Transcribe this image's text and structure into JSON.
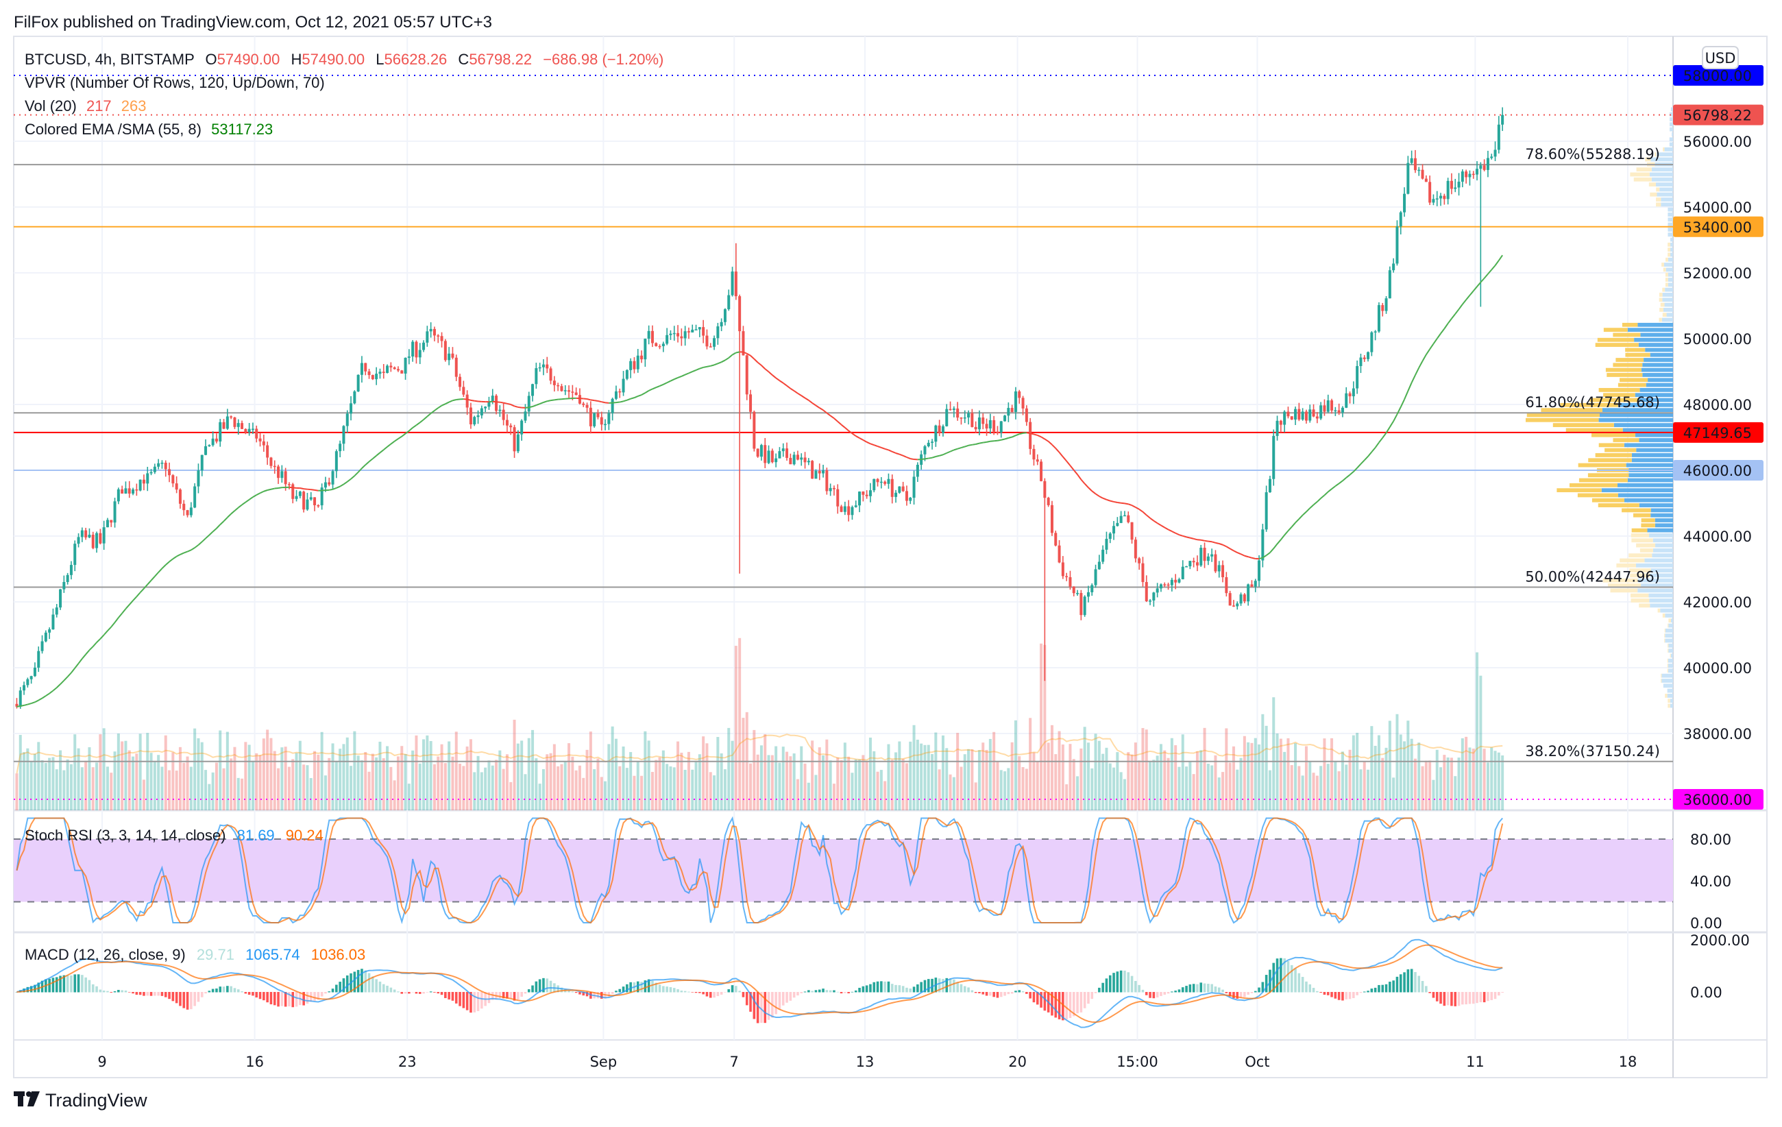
{
  "header": {
    "published": "FilFox published on TradingView.com, Oct 12, 2021 05:57 UTC+3"
  },
  "legend": {
    "symbol": "BTCUSD, 4h, BITSTAMP",
    "o_label": "O",
    "o": "57490.00",
    "h_label": "H",
    "h": "57490.00",
    "l_label": "L",
    "l": "56628.26",
    "c_label": "C",
    "c": "56798.22",
    "change": "−686.98 (−1.20%)",
    "vpvr": "VPVR (Number Of Rows, 120, Up/Down, 70)",
    "vol_label": "Vol (20)",
    "vol1": "217",
    "vol2": "263",
    "ema_label": "Colored EMA /SMA (55, 8)",
    "ema_val": "53117.23"
  },
  "rsi": {
    "label": "Stoch RSI (3, 3, 14, 14, close)",
    "k": "81.69",
    "d": "90.24",
    "ticks": [
      {
        "label": "80.00",
        "value": 80
      },
      {
        "label": "40.00",
        "value": 40
      },
      {
        "label": "0.00",
        "value": 0
      }
    ]
  },
  "macd": {
    "label": "MACD (12, 26, close, 9)",
    "hist": "29.71",
    "macd": "1065.74",
    "signal": "1036.03",
    "ticks": [
      {
        "label": "2000.00",
        "value": 2000
      },
      {
        "label": "0.00",
        "value": 0
      }
    ]
  },
  "price_axis": {
    "currency": "USD",
    "ticks": [
      {
        "label": "56000.00",
        "value": 56000
      },
      {
        "label": "54000.00",
        "value": 54000
      },
      {
        "label": "52000.00",
        "value": 52000
      },
      {
        "label": "50000.00",
        "value": 50000
      },
      {
        "label": "48000.00",
        "value": 48000
      },
      {
        "label": "44000.00",
        "value": 44000
      },
      {
        "label": "42000.00",
        "value": 42000
      },
      {
        "label": "40000.00",
        "value": 40000
      },
      {
        "label": "38000.00",
        "value": 38000
      }
    ]
  },
  "price_labels": [
    {
      "label": "58000.00",
      "value": 58000,
      "bg": "#0000ff",
      "fg": "#ffffff",
      "line": "dotted"
    },
    {
      "label": "56798.22",
      "value": 56798.22,
      "bg": "#ef5350",
      "fg": "#ffffff",
      "line": "dotted"
    },
    {
      "label": "53400.00",
      "value": 53400,
      "bg": "#ffa726",
      "fg": "#131722",
      "line": "solid"
    },
    {
      "label": "47149.65",
      "value": 47149.65,
      "bg": "#ff0000",
      "fg": "#ffffff",
      "line": "solid"
    },
    {
      "label": "46000.00",
      "value": 46000,
      "bg": "#a4c2f4",
      "fg": "#131722",
      "line": "solid"
    },
    {
      "label": "36000.00",
      "value": 36000,
      "bg": "#ff00ff",
      "fg": "#ffffff",
      "line": "dotted"
    }
  ],
  "fib_levels": [
    {
      "label": "78.60%(55288.19)",
      "value": 55288.19
    },
    {
      "label": "61.80%(47745.68)",
      "value": 47745.68
    },
    {
      "label": "50.00%(42447.96)",
      "value": 42447.96
    },
    {
      "label": "38.20%(37150.24)",
      "value": 37150.24
    }
  ],
  "time_axis": [
    {
      "label": "9",
      "day": 0
    },
    {
      "label": "16",
      "day": 7
    },
    {
      "label": "23",
      "day": 14
    },
    {
      "label": "Sep",
      "day": 23
    },
    {
      "label": "7",
      "day": 29
    },
    {
      "label": "13",
      "day": 35
    },
    {
      "label": "20",
      "day": 42
    },
    {
      "label": "15:00",
      "day": 47.5
    },
    {
      "label": "Oct",
      "day": 53
    },
    {
      "label": "11",
      "day": 63
    },
    {
      "label": "18",
      "day": 70
    }
  ],
  "footer": {
    "brand": "TradingView"
  },
  "colors": {
    "up": "#26a69a",
    "down": "#ef5350",
    "ema_up": "#4caf50",
    "ema_down": "#f44336",
    "k": "#2196f3",
    "d": "#ff6d00",
    "vp_up": "#5eaeeb",
    "vp_down": "#f9cf62",
    "vp_up_light": "#c8e3f8",
    "vp_down_light": "#fdedc6"
  },
  "chart_data": {
    "type": "candlestick",
    "title": "BTCUSD, 4h, BITSTAMP",
    "start_day": "Aug 5",
    "daily_closes": [
      39800,
      41800,
      43900,
      43800,
      45500,
      45800,
      46200,
      44500,
      47000,
      47600,
      47000,
      46000,
      45000,
      44800,
      46700,
      49000,
      48800,
      49200,
      50000,
      49500,
      47500,
      48500,
      46800,
      48900,
      48800,
      48300,
      47200,
      48800,
      49800,
      50000,
      50200,
      50000,
      51800,
      46800,
      46200,
      46500,
      45800,
      45000,
      45200,
      45800,
      45100,
      47000,
      48000,
      47600,
      47400,
      48200,
      46000,
      43200,
      41800,
      43500,
      44600,
      42200,
      42500,
      43200,
      43600,
      41800,
      42500,
      47600,
      47800,
      47900,
      48000,
      49500,
      51400,
      55200,
      54300,
      54700,
      55200,
      55600,
      56798.22
    ],
    "intraday_extremes": [
      {
        "day": 33,
        "high": 52900,
        "low": 42860
      },
      {
        "day": 47,
        "low": 39600
      },
      {
        "day": 67,
        "low": 50970
      }
    ],
    "ylim": [
      35000,
      59500
    ],
    "ylabel": "USD"
  }
}
